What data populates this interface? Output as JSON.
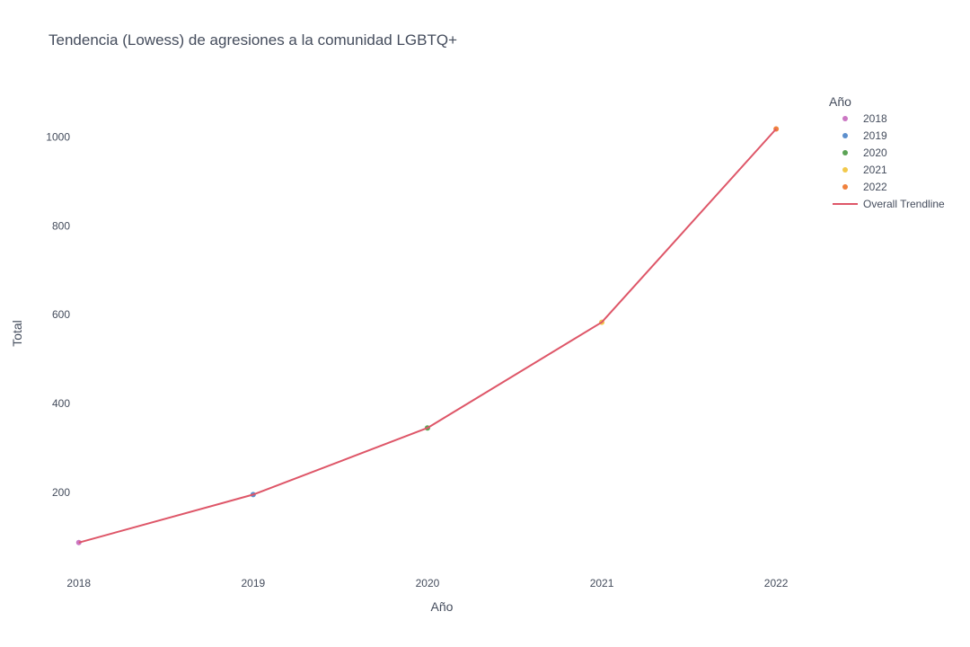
{
  "chart_data": {
    "type": "scatter",
    "title": "Tendencia (Lowess) de agresiones a la comunidad LGBTQ+",
    "xlabel": "Año",
    "ylabel": "Total",
    "x": [
      2018,
      2019,
      2020,
      2021,
      2022
    ],
    "xticks": [
      "2018",
      "2019",
      "2020",
      "2021",
      "2022"
    ],
    "yticks": [
      200,
      400,
      600,
      800,
      1000
    ],
    "xlim": [
      2017.96,
      2022.7
    ],
    "ylim": [
      34,
      1106
    ],
    "grid": false,
    "legend": {
      "title": "Año",
      "placement": "right"
    },
    "series": [
      {
        "name": "2018",
        "x": [
          2018
        ],
        "values": [
          87
        ],
        "color": "#CB77C3"
      },
      {
        "name": "2019",
        "x": [
          2019
        ],
        "values": [
          195
        ],
        "color": "#5C8FCD"
      },
      {
        "name": "2020",
        "x": [
          2020
        ],
        "values": [
          345
        ],
        "color": "#5BA355"
      },
      {
        "name": "2021",
        "x": [
          2021
        ],
        "values": [
          583
        ],
        "color": "#F2C94C"
      },
      {
        "name": "2022",
        "x": [
          2022
        ],
        "values": [
          1018
        ],
        "color": "#F0813D"
      }
    ],
    "trendline": {
      "name": "Overall Trendline",
      "x": [
        2018,
        2019,
        2020,
        2021,
        2022
      ],
      "values": [
        87,
        195,
        345,
        583,
        1018
      ],
      "color": "#DE5668"
    }
  }
}
